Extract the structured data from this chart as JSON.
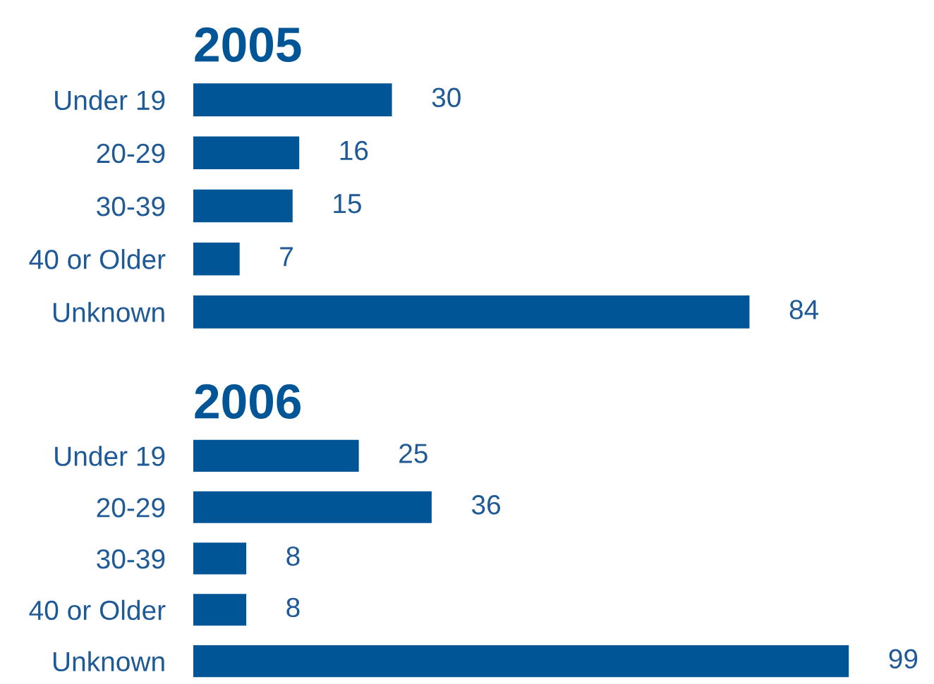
{
  "chart_data": [
    {
      "type": "bar",
      "orientation": "horizontal",
      "title": "2005",
      "categories": [
        "Under 19",
        "20-29",
        "30-39",
        "40 or Older",
        "Unknown"
      ],
      "values": [
        30,
        16,
        15,
        7,
        84
      ],
      "color": "#005596",
      "data_labels": true,
      "grid": false,
      "legend": false,
      "tick_labels": "y"
    },
    {
      "type": "bar",
      "orientation": "horizontal",
      "title": "2006",
      "categories": [
        "Under 19",
        "20-29",
        "30-39",
        "40 or Older",
        "Unknown"
      ],
      "values": [
        25,
        36,
        8,
        8,
        99
      ],
      "color": "#005596",
      "data_labels": true,
      "grid": false,
      "legend": false,
      "tick_labels": "y"
    }
  ]
}
